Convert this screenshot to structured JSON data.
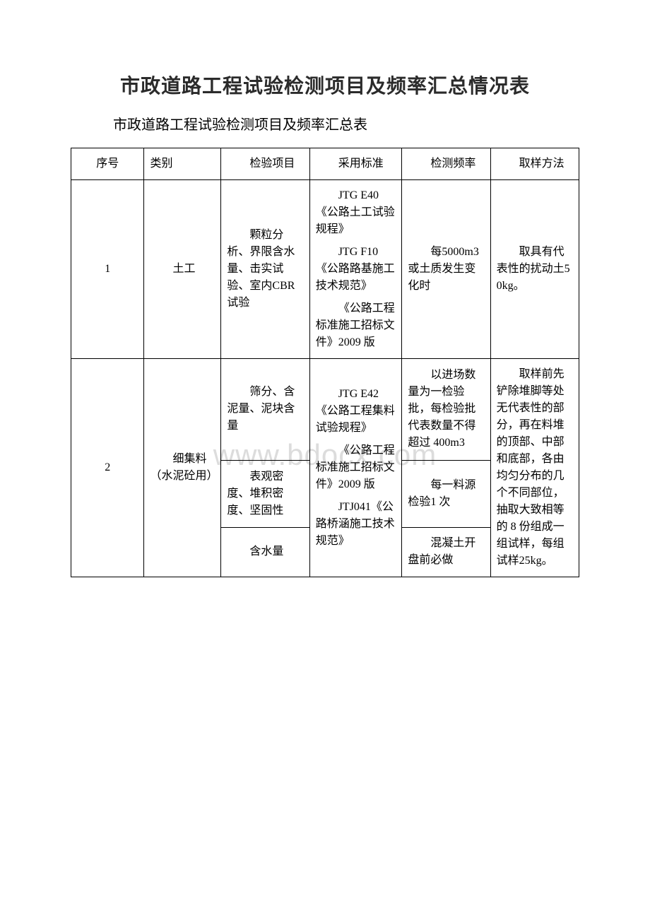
{
  "watermark": "www.bdocx.com",
  "title": "市政道路工程试验检测项目及频率汇总情况表",
  "subtitle": "市政道路工程试验检测项目及频率汇总表",
  "columns": {
    "seq": "序号",
    "category": "类别",
    "item": "检验项目",
    "standard": "采用标准",
    "frequency": "检测频率",
    "method": "取样方法"
  },
  "rows": [
    {
      "seq": "1",
      "category": "土工",
      "item": "颗粒分析、界限含水量、击实试验、室内CBR 试验",
      "standards": [
        "JTG E40《公路土工试验规程》",
        "JTG F10《公路路基施工技术规范》",
        "《公路工程标准施工招标文件》2009 版"
      ],
      "frequency": "每5000m3 或土质发生变化时",
      "method": "取具有代表性的扰动土50kg。"
    },
    {
      "seq": "2",
      "category": "细集料（水泥砼用）",
      "items": [
        {
          "item": "筛分、含泥量、泥块含量",
          "frequency": "以进场数量为一检验批，每检验批代表数量不得超过 400m3"
        },
        {
          "item": "表观密度、堆积密度、坚固性",
          "frequency": "每一料源检验1 次"
        },
        {
          "item": "含水量",
          "frequency": "混凝土开盘前必做"
        }
      ],
      "standards": [
        "JTG E42《公路工程集料试验规程》",
        "《公路工程标准施工招标文件》2009 版",
        "JTJ041《公路桥涵施工技术规范》"
      ],
      "method": "取样前先铲除堆脚等处无代表性的部分，再在料堆的顶部、中部和底部，各由均匀分布的几个不同部位，抽取大致相等的 8 份组成一组试样，每组试样25kg。"
    }
  ]
}
